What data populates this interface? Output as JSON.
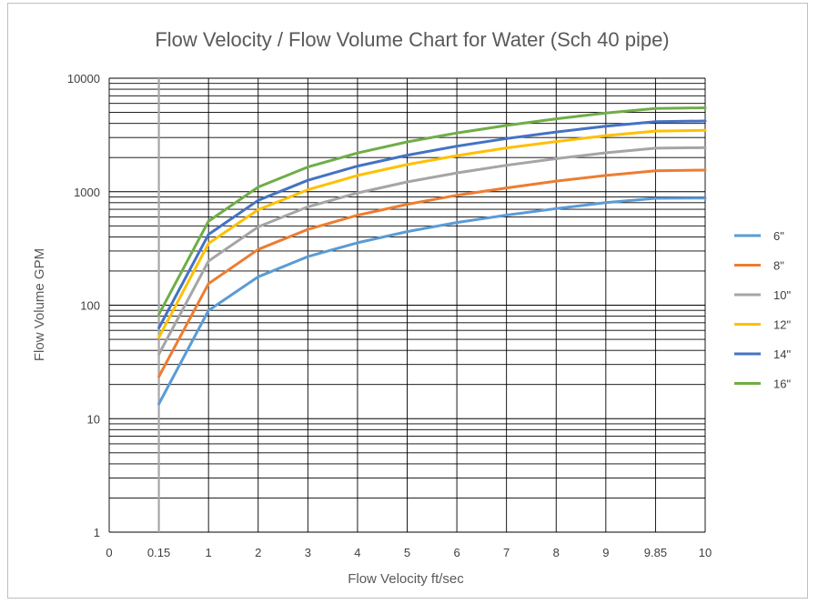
{
  "chart_data": {
    "type": "line",
    "title": "Flow Velocity / Flow Volume Chart for Water (Sch 40 pipe)",
    "xlabel": "Flow Velocity ft/sec",
    "ylabel": "Flow Volume GPM",
    "y_scale": "log",
    "ylim": [
      1,
      10000
    ],
    "y_ticks": [
      "1",
      "10",
      "100",
      "1000",
      "10000"
    ],
    "categories": [
      "0",
      "0.15",
      "1",
      "2",
      "3",
      "4",
      "5",
      "6",
      "7",
      "8",
      "9",
      "9.85",
      "10"
    ],
    "grid": true,
    "legend_position": "right",
    "series": [
      {
        "name": "6\"",
        "color": "#5B9BD5",
        "values": [
          null,
          13.5,
          90,
          178,
          268,
          355,
          445,
          535,
          622,
          710,
          800,
          875,
          880
        ]
      },
      {
        "name": "8\"",
        "color": "#ED7D31",
        "values": [
          null,
          23.5,
          155,
          310,
          465,
          620,
          775,
          930,
          1080,
          1240,
          1390,
          1530,
          1550
        ]
      },
      {
        "name": "10\"",
        "color": "#A5A5A5",
        "values": [
          null,
          37,
          245,
          490,
          735,
          975,
          1220,
          1465,
          1710,
          1955,
          2200,
          2420,
          2445
        ]
      },
      {
        "name": "12\"",
        "color": "#FFC000",
        "values": [
          null,
          52,
          350,
          695,
          1040,
          1390,
          1735,
          2080,
          2430,
          2770,
          3120,
          3420,
          3470
        ]
      },
      {
        "name": "14\"",
        "color": "#4472C4",
        "values": [
          null,
          63,
          420,
          840,
          1260,
          1680,
          2100,
          2520,
          2940,
          3360,
          3780,
          4140,
          4200
        ]
      },
      {
        "name": "16\"",
        "color": "#70AD47",
        "values": [
          null,
          83,
          550,
          1100,
          1650,
          2195,
          2745,
          3290,
          3840,
          4390,
          4940,
          5410,
          5490
        ]
      }
    ]
  }
}
